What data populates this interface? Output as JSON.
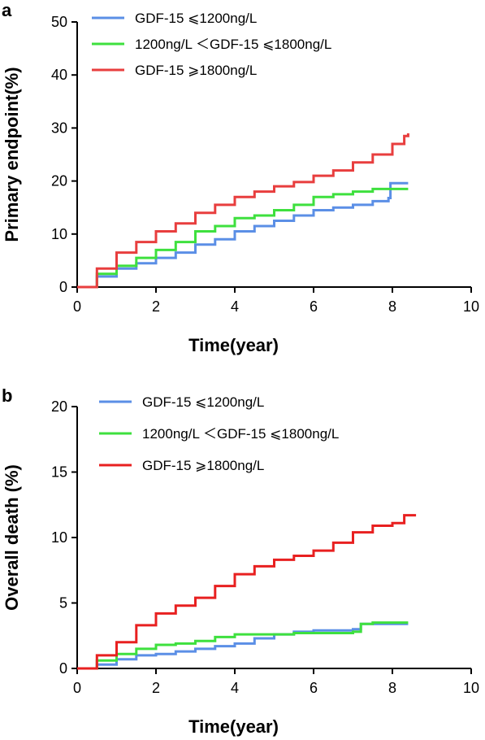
{
  "chart_data": [
    {
      "type": "line",
      "panel_label": "a",
      "xlabel": "Time(year)",
      "ylabel": "Primary endpoint(%)",
      "xlim": [
        0,
        10
      ],
      "ylim": [
        0,
        50
      ],
      "xticks": [
        0,
        2,
        4,
        6,
        8,
        10
      ],
      "yticks": [
        0,
        10,
        20,
        30,
        40,
        50
      ],
      "xtick_labels": [
        "0",
        "2",
        "4",
        "6",
        "8",
        "10"
      ],
      "ytick_labels": [
        "0",
        "10",
        "20",
        "30",
        "40",
        "50"
      ],
      "grid": false,
      "legend_position": "top-left",
      "series": [
        {
          "name": "GDF-15 ⩽1200ng/L",
          "color": "#5b8fe6",
          "x": [
            0,
            0.5,
            1,
            1.5,
            2,
            2.5,
            3,
            3.5,
            4,
            4.5,
            5,
            5.5,
            6,
            6.5,
            7,
            7.5,
            7.9,
            7.95,
            8.4
          ],
          "y": [
            0,
            2,
            3.5,
            4.5,
            5.5,
            6.5,
            8,
            9,
            10.5,
            11.5,
            12.5,
            13.5,
            14.5,
            15,
            15.5,
            16.2,
            16.8,
            19.6,
            19.6
          ]
        },
        {
          "name": "1200ng/L ＜GDF-15 ⩽1800ng/L",
          "color": "#3ee03e",
          "x": [
            0,
            0.5,
            1,
            1.5,
            2,
            2.5,
            3,
            3.5,
            4,
            4.5,
            5,
            5.5,
            6,
            6.5,
            7,
            7.5,
            8,
            8.4
          ],
          "y": [
            0,
            2.5,
            4,
            5.5,
            7,
            8.5,
            10.5,
            11.5,
            13,
            13.5,
            14.5,
            15.5,
            17,
            17.5,
            18,
            18.5,
            18.5,
            18.5
          ]
        },
        {
          "name": "GDF-15 ⩾1800ng/L",
          "color": "#e83e3e",
          "x": [
            0,
            0.5,
            1,
            1.5,
            2,
            2.5,
            3,
            3.5,
            4,
            4.5,
            5,
            5.5,
            6,
            6.5,
            7,
            7.5,
            8,
            8.3,
            8.4
          ],
          "y": [
            0,
            3.5,
            6.5,
            8.5,
            10.5,
            12,
            14,
            15.5,
            17,
            18,
            19,
            19.8,
            21,
            22,
            23.5,
            25,
            27,
            28.5,
            29
          ]
        }
      ]
    },
    {
      "type": "line",
      "panel_label": "b",
      "xlabel": "Time(year)",
      "ylabel": "Overall death (%)",
      "xlim": [
        0,
        10
      ],
      "ylim": [
        0,
        20
      ],
      "xticks": [
        0,
        2,
        4,
        6,
        8,
        10
      ],
      "yticks": [
        0,
        5,
        10,
        15,
        20
      ],
      "xtick_labels": [
        "0",
        "2",
        "4",
        "6",
        "8",
        "10"
      ],
      "ytick_labels": [
        "0",
        "5",
        "10",
        "15",
        "20"
      ],
      "grid": false,
      "legend_position": "top-left",
      "series": [
        {
          "name": "GDF-15 ⩽1200ng/L",
          "color": "#5b8fe6",
          "x": [
            0,
            0.5,
            1,
            1.5,
            2,
            2.5,
            3,
            3.5,
            4,
            4.5,
            5,
            5.5,
            6,
            6.5,
            7,
            7.2,
            7.5,
            8,
            8.4
          ],
          "y": [
            0,
            0.3,
            0.7,
            1.0,
            1.1,
            1.3,
            1.5,
            1.7,
            1.9,
            2.3,
            2.6,
            2.8,
            2.9,
            2.9,
            3.0,
            3.4,
            3.4,
            3.4,
            3.4
          ]
        },
        {
          "name": "1200ng/L ＜GDF-15 ⩽1800ng/L",
          "color": "#3ee03e",
          "x": [
            0,
            0.5,
            1,
            1.5,
            2,
            2.5,
            3,
            3.5,
            4,
            4.5,
            5,
            5.5,
            6,
            6.5,
            7,
            7.2,
            7.5,
            8,
            8.4
          ],
          "y": [
            0,
            0.6,
            1.1,
            1.5,
            1.8,
            1.9,
            2.1,
            2.4,
            2.6,
            2.6,
            2.6,
            2.7,
            2.7,
            2.7,
            2.8,
            3.4,
            3.5,
            3.5,
            3.5
          ]
        },
        {
          "name": "GDF-15 ⩾1800ng/L",
          "color": "#e82020",
          "x": [
            0,
            0.5,
            1,
            1.5,
            2,
            2.5,
            3,
            3.5,
            4,
            4.5,
            5,
            5.5,
            6,
            6.5,
            7,
            7.5,
            8,
            8.3,
            8.6
          ],
          "y": [
            0,
            1.0,
            2.0,
            3.3,
            4.2,
            4.8,
            5.4,
            6.3,
            7.2,
            7.8,
            8.3,
            8.6,
            9.0,
            9.6,
            10.4,
            10.9,
            11.1,
            11.7,
            11.7
          ]
        }
      ]
    }
  ]
}
